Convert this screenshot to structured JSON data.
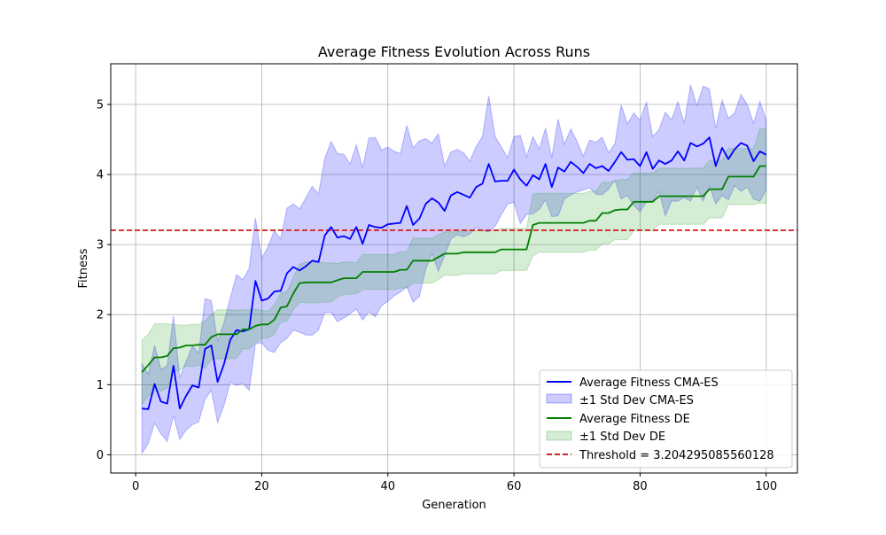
{
  "chart_data": {
    "type": "line",
    "title": "Average Fitness Evolution Across Runs",
    "xlabel": "Generation",
    "ylabel": "Fitness",
    "xlim": [
      -3.95,
      104.95
    ],
    "ylim": [
      -0.26,
      5.58
    ],
    "xticks": [
      0,
      20,
      40,
      60,
      80,
      100
    ],
    "yticks": [
      0,
      1,
      2,
      3,
      4,
      5
    ],
    "grid": true,
    "legend_position": "lower-right",
    "threshold": {
      "value": 3.204295085560128,
      "label": "Threshold = 3.204295085560128",
      "color": "#d62728"
    },
    "x": [
      1,
      2,
      3,
      4,
      5,
      6,
      7,
      8,
      9,
      10,
      11,
      12,
      13,
      14,
      15,
      16,
      17,
      18,
      19,
      20,
      21,
      22,
      23,
      24,
      25,
      26,
      27,
      28,
      29,
      30,
      31,
      32,
      33,
      34,
      35,
      36,
      37,
      38,
      39,
      40,
      41,
      42,
      43,
      44,
      45,
      46,
      47,
      48,
      49,
      50,
      51,
      52,
      53,
      54,
      55,
      56,
      57,
      58,
      59,
      60,
      61,
      62,
      63,
      64,
      65,
      66,
      67,
      68,
      69,
      70,
      71,
      72,
      73,
      74,
      75,
      76,
      77,
      78,
      79,
      80,
      81,
      82,
      83,
      84,
      85,
      86,
      87,
      88,
      89,
      90,
      91,
      92,
      93,
      94,
      95,
      96,
      97,
      98,
      99,
      100
    ],
    "series": [
      {
        "name": "Average Fitness CMA-ES",
        "band_name": "±1 Std Dev CMA-ES",
        "color": "#0000ff",
        "band_color": "#0000ff",
        "mean": [
          0.66,
          0.65,
          1.01,
          0.76,
          0.73,
          1.27,
          0.66,
          0.84,
          0.99,
          0.96,
          1.51,
          1.56,
          1.04,
          1.29,
          1.64,
          1.78,
          1.76,
          1.79,
          2.48,
          2.2,
          2.23,
          2.33,
          2.34,
          2.59,
          2.68,
          2.63,
          2.69,
          2.77,
          2.75,
          3.13,
          3.25,
          3.1,
          3.12,
          3.08,
          3.25,
          3.01,
          3.28,
          3.25,
          3.24,
          3.29,
          3.3,
          3.31,
          3.55,
          3.28,
          3.37,
          3.58,
          3.66,
          3.6,
          3.48,
          3.7,
          3.75,
          3.71,
          3.67,
          3.82,
          3.87,
          4.15,
          3.9,
          3.91,
          3.91,
          4.07,
          3.93,
          3.84,
          3.99,
          3.93,
          4.15,
          3.82,
          4.1,
          4.04,
          4.18,
          4.11,
          4.02,
          4.15,
          4.09,
          4.12,
          4.05,
          4.18,
          4.32,
          4.21,
          4.22,
          4.12,
          4.32,
          4.08,
          4.2,
          4.15,
          4.2,
          4.33,
          4.2,
          4.45,
          4.4,
          4.44,
          4.53,
          4.12,
          4.38,
          4.22,
          4.36,
          4.45,
          4.41,
          4.19,
          4.33,
          4.28
        ],
        "upper": [
          1.3,
          1.15,
          1.56,
          1.22,
          1.27,
          1.98,
          1.1,
          1.33,
          1.55,
          1.45,
          2.23,
          2.2,
          1.62,
          1.88,
          2.24,
          2.57,
          2.5,
          2.66,
          3.38,
          2.8,
          2.97,
          3.2,
          3.08,
          3.52,
          3.58,
          3.51,
          3.67,
          3.83,
          3.72,
          4.23,
          4.47,
          4.3,
          4.29,
          4.15,
          4.42,
          4.1,
          4.52,
          4.53,
          4.35,
          4.39,
          4.33,
          4.3,
          4.7,
          4.38,
          4.48,
          4.51,
          4.45,
          4.58,
          4.12,
          4.32,
          4.36,
          4.31,
          4.19,
          4.4,
          4.54,
          5.12,
          4.54,
          4.39,
          4.24,
          4.54,
          4.56,
          4.25,
          4.54,
          4.36,
          4.66,
          4.24,
          4.79,
          4.43,
          4.65,
          4.47,
          4.26,
          4.49,
          4.46,
          4.53,
          4.31,
          4.44,
          4.99,
          4.72,
          4.88,
          4.77,
          5.03,
          4.54,
          4.64,
          4.89,
          4.78,
          5.04,
          4.73,
          5.28,
          4.98,
          5.26,
          5.22,
          4.66,
          5.06,
          4.8,
          4.88,
          5.14,
          5.0,
          4.73,
          5.04,
          4.78
        ],
        "lower": [
          0.02,
          0.16,
          0.45,
          0.3,
          0.19,
          0.56,
          0.22,
          0.35,
          0.43,
          0.47,
          0.79,
          0.92,
          0.46,
          0.7,
          1.04,
          0.99,
          1.02,
          0.92,
          1.58,
          1.6,
          1.49,
          1.46,
          1.6,
          1.66,
          1.78,
          1.75,
          1.71,
          1.71,
          1.78,
          2.03,
          2.03,
          1.9,
          1.95,
          2.01,
          2.08,
          1.92,
          2.04,
          1.97,
          2.13,
          2.19,
          2.27,
          2.32,
          2.4,
          2.18,
          2.26,
          2.65,
          2.87,
          2.62,
          2.84,
          3.08,
          3.14,
          3.11,
          3.15,
          3.24,
          3.2,
          3.18,
          3.26,
          3.43,
          3.58,
          3.6,
          3.3,
          3.43,
          3.44,
          3.5,
          3.64,
          3.4,
          3.41,
          3.65,
          3.71,
          3.75,
          3.78,
          3.81,
          3.72,
          3.71,
          3.79,
          3.92,
          3.65,
          3.7,
          3.56,
          3.47,
          3.61,
          3.62,
          3.76,
          3.41,
          3.62,
          3.62,
          3.67,
          3.62,
          3.82,
          3.62,
          3.84,
          3.58,
          3.7,
          3.64,
          3.84,
          3.76,
          3.82,
          3.65,
          3.62,
          3.78
        ]
      },
      {
        "name": "Average Fitness DE",
        "band_name": "±1 Std Dev DE",
        "color": "#008000",
        "band_color": "#2ca02c",
        "mean": [
          1.18,
          1.28,
          1.39,
          1.39,
          1.41,
          1.52,
          1.53,
          1.56,
          1.56,
          1.57,
          1.57,
          1.68,
          1.72,
          1.72,
          1.72,
          1.72,
          1.79,
          1.79,
          1.84,
          1.86,
          1.86,
          1.93,
          2.1,
          2.12,
          2.3,
          2.45,
          2.46,
          2.46,
          2.46,
          2.46,
          2.46,
          2.49,
          2.52,
          2.52,
          2.52,
          2.61,
          2.61,
          2.61,
          2.61,
          2.61,
          2.61,
          2.64,
          2.64,
          2.77,
          2.77,
          2.77,
          2.77,
          2.82,
          2.87,
          2.87,
          2.87,
          2.89,
          2.89,
          2.89,
          2.89,
          2.89,
          2.89,
          2.93,
          2.93,
          2.93,
          2.93,
          2.93,
          3.28,
          3.31,
          3.31,
          3.31,
          3.31,
          3.31,
          3.31,
          3.31,
          3.31,
          3.34,
          3.34,
          3.45,
          3.45,
          3.49,
          3.5,
          3.5,
          3.61,
          3.61,
          3.61,
          3.61,
          3.69,
          3.69,
          3.69,
          3.69,
          3.69,
          3.69,
          3.69,
          3.69,
          3.79,
          3.79,
          3.79,
          3.97,
          3.97,
          3.97,
          3.97,
          3.97,
          4.12,
          4.12
        ],
        "upper": [
          1.64,
          1.72,
          1.87,
          1.87,
          1.87,
          1.86,
          1.85,
          1.85,
          1.86,
          1.86,
          1.91,
          2.0,
          2.07,
          2.07,
          2.07,
          2.06,
          2.07,
          2.07,
          2.08,
          2.06,
          2.05,
          2.14,
          2.31,
          2.33,
          2.53,
          2.72,
          2.75,
          2.75,
          2.75,
          2.74,
          2.74,
          2.73,
          2.75,
          2.75,
          2.74,
          2.86,
          2.86,
          2.86,
          2.86,
          2.86,
          2.86,
          2.9,
          2.9,
          3.09,
          3.09,
          3.09,
          3.09,
          3.14,
          3.18,
          3.18,
          3.18,
          3.2,
          3.2,
          3.2,
          3.2,
          3.2,
          3.2,
          3.23,
          3.23,
          3.23,
          3.23,
          3.23,
          3.72,
          3.73,
          3.73,
          3.73,
          3.73,
          3.73,
          3.73,
          3.73,
          3.73,
          3.76,
          3.76,
          3.89,
          3.89,
          3.91,
          3.93,
          3.93,
          4.02,
          4.02,
          4.02,
          4.02,
          4.09,
          4.09,
          4.09,
          4.09,
          4.09,
          4.09,
          4.09,
          4.09,
          4.2,
          4.2,
          4.2,
          4.37,
          4.37,
          4.37,
          4.37,
          4.37,
          4.65,
          4.65
        ],
        "lower": [
          0.72,
          0.84,
          0.91,
          0.91,
          0.95,
          1.18,
          1.21,
          1.27,
          1.26,
          1.28,
          1.23,
          1.36,
          1.37,
          1.37,
          1.37,
          1.38,
          1.51,
          1.51,
          1.6,
          1.66,
          1.67,
          1.72,
          1.89,
          1.91,
          2.07,
          2.18,
          2.17,
          2.17,
          2.17,
          2.18,
          2.18,
          2.25,
          2.29,
          2.29,
          2.3,
          2.36,
          2.36,
          2.36,
          2.36,
          2.36,
          2.36,
          2.38,
          2.38,
          2.45,
          2.45,
          2.45,
          2.45,
          2.5,
          2.56,
          2.56,
          2.56,
          2.58,
          2.58,
          2.58,
          2.58,
          2.58,
          2.58,
          2.63,
          2.63,
          2.63,
          2.63,
          2.63,
          2.84,
          2.89,
          2.89,
          2.89,
          2.89,
          2.89,
          2.89,
          2.89,
          2.89,
          2.92,
          2.92,
          3.01,
          3.01,
          3.07,
          3.07,
          3.07,
          3.2,
          3.2,
          3.2,
          3.2,
          3.29,
          3.29,
          3.29,
          3.29,
          3.29,
          3.29,
          3.29,
          3.29,
          3.38,
          3.38,
          3.38,
          3.57,
          3.57,
          3.57,
          3.57,
          3.57,
          3.59,
          3.59
        ]
      }
    ]
  }
}
